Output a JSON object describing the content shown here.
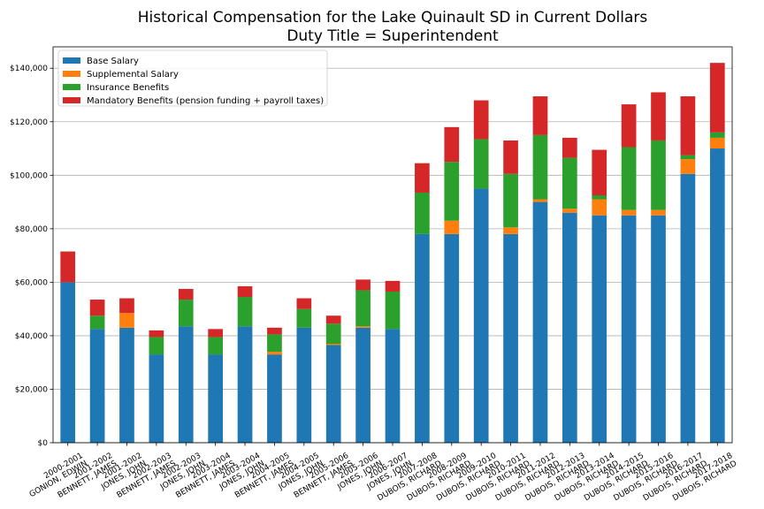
{
  "chart_data": {
    "type": "bar",
    "stacked": true,
    "title": "Historical Compensation for the Lake Quinault SD in Current Dollars",
    "subtitle": "Duty Title = Superintendent",
    "ylim": [
      0,
      148000
    ],
    "yticks": [
      0,
      20000,
      40000,
      60000,
      80000,
      100000,
      120000,
      140000
    ],
    "ytick_labels": [
      "$0",
      "$20,000",
      "$40,000",
      "$60,000",
      "$80,000",
      "$100,000",
      "$120,000",
      "$140,000"
    ],
    "grid": "y",
    "legend_position": "top-left",
    "categories": [
      [
        "2000-2001",
        "GONION, EDWIN"
      ],
      [
        "2001-2002",
        "BENNETT, JAMES"
      ],
      [
        "2001-2002",
        "JONES, JOHN"
      ],
      [
        "2002-2003",
        "BENNETT, JAMES"
      ],
      [
        "2002-2003",
        "JONES, JOHN"
      ],
      [
        "2003-2004",
        "BENNETT, JAMES"
      ],
      [
        "2003-2004",
        "JONES, JOHN"
      ],
      [
        "2004-2005",
        "BENNETT, JAMES"
      ],
      [
        "2004-2005",
        "JONES, JOHN"
      ],
      [
        "2005-2006",
        "BENNETT, JAMES"
      ],
      [
        "2005-2006",
        "JONES, JOHN"
      ],
      [
        "2006-2007",
        "JONES, JOHN"
      ],
      [
        "2007-2008",
        "DUBOIS, RICHARD"
      ],
      [
        "2008-2009",
        "DUBOIS, RICHARD"
      ],
      [
        "2009-2010",
        "DUBOIS, RICHARD"
      ],
      [
        "2010-2011",
        "DUBOIS, RICHARD"
      ],
      [
        "2011-2012",
        "DUBOIS, RICHARD"
      ],
      [
        "2012-2013",
        "DUBOIS, RICHARD"
      ],
      [
        "2013-2014",
        "DUBOIS, RICHARD"
      ],
      [
        "2014-2015",
        "DUBOIS, RICHARD"
      ],
      [
        "2015-2016",
        "DUBOIS, RICHARD"
      ],
      [
        "2016-2017",
        "DUBOIS, RICHARD"
      ],
      [
        "2017-2018",
        "DUBOIS, RICHARD"
      ]
    ],
    "series": [
      {
        "name": "Base Salary",
        "color": "#1f77b4",
        "values": [
          60000,
          42500,
          43000,
          33000,
          43500,
          33000,
          43500,
          33000,
          43000,
          36500,
          43000,
          42500,
          78000,
          78000,
          95000,
          78000,
          90000,
          86000,
          85000,
          85000,
          85000,
          100500,
          110000
        ]
      },
      {
        "name": "Supplemental Salary",
        "color": "#ff7f0e",
        "values": [
          0,
          0,
          5500,
          0,
          0,
          0,
          0,
          1000,
          0,
          500,
          500,
          0,
          0,
          5000,
          0,
          2500,
          1000,
          1500,
          6000,
          2000,
          2000,
          5500,
          4000
        ]
      },
      {
        "name": "Insurance Benefits",
        "color": "#2ca02c",
        "values": [
          0,
          5000,
          0,
          6500,
          10000,
          6500,
          11000,
          6500,
          7000,
          7500,
          13500,
          14000,
          15500,
          22000,
          18500,
          20000,
          24000,
          19000,
          1500,
          23500,
          26000,
          1500,
          2000
        ]
      },
      {
        "name": "Mandatory Benefits (pension funding + payroll taxes)",
        "color": "#d62728",
        "values": [
          11500,
          6000,
          5500,
          2500,
          4000,
          3000,
          4000,
          2500,
          4000,
          3000,
          4000,
          4000,
          11000,
          13000,
          14500,
          12500,
          14500,
          7500,
          17000,
          16000,
          18000,
          22000,
          26000
        ]
      }
    ]
  }
}
